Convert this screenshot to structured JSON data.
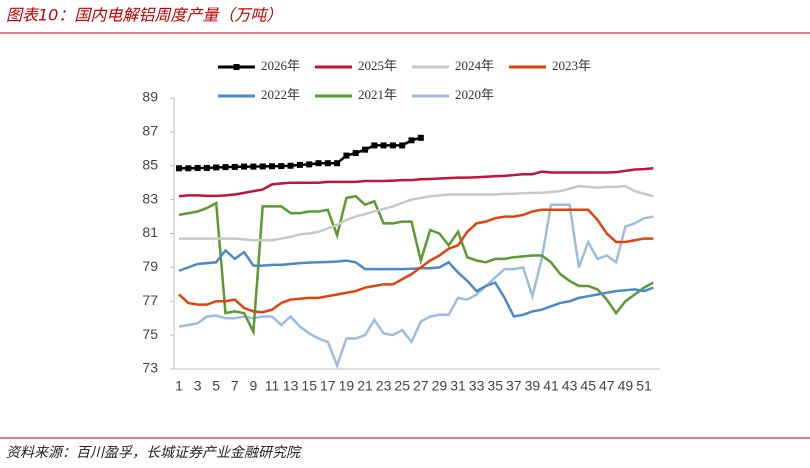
{
  "chart_data": {
    "type": "line",
    "title": "图表10：国内电解铝周度产量（万吨）",
    "source": "资料来源：百川盈孚，长城证券产业金融研究院",
    "categories": [
      "1",
      null,
      "3",
      null,
      "5",
      null,
      "7",
      null,
      "9",
      null,
      "11",
      null,
      "13",
      null,
      "15",
      null,
      "17",
      null,
      "19",
      null,
      "21",
      null,
      "23",
      null,
      "25",
      null,
      "27",
      null,
      "29",
      null,
      "31",
      null,
      "33",
      null,
      "35",
      null,
      "37",
      null,
      "39",
      null,
      "41",
      null,
      "43",
      null,
      "45",
      null,
      "47",
      null,
      "49",
      null,
      "51",
      null
    ],
    "ylim": [
      73,
      89
    ],
    "yticks": [
      73,
      75,
      77,
      79,
      81,
      83,
      85,
      87,
      89
    ],
    "series": [
      {
        "name": "2026年",
        "color": "#000000",
        "marker": "square",
        "values": [
          84.85,
          84.85,
          84.87,
          84.87,
          84.9,
          84.92,
          84.93,
          84.95,
          84.95,
          84.96,
          84.97,
          84.98,
          85.0,
          85.05,
          85.08,
          85.15,
          85.15,
          85.15,
          85.6,
          85.75,
          85.95,
          86.2,
          86.2,
          86.2,
          86.2,
          86.5,
          86.65,
          null,
          null,
          null,
          null,
          null,
          null,
          null,
          null,
          null,
          null,
          null,
          null,
          null,
          null,
          null,
          null,
          null,
          null,
          null,
          null,
          null,
          null,
          null,
          null,
          null
        ]
      },
      {
        "name": "2025年",
        "color": "#c0143c",
        "values": [
          83.2,
          83.25,
          83.25,
          83.22,
          83.22,
          83.25,
          83.3,
          83.4,
          83.5,
          83.6,
          83.9,
          83.95,
          84.0,
          84.0,
          84.0,
          84.0,
          84.05,
          84.05,
          84.05,
          84.05,
          84.1,
          84.1,
          84.1,
          84.12,
          84.15,
          84.15,
          84.2,
          84.22,
          84.25,
          84.27,
          84.3,
          84.3,
          84.32,
          84.35,
          84.38,
          84.4,
          84.45,
          84.5,
          84.5,
          84.65,
          84.6,
          84.6,
          84.6,
          84.6,
          84.6,
          84.6,
          84.6,
          84.62,
          84.7,
          84.78,
          84.8,
          84.85
        ]
      },
      {
        "name": "2024年",
        "color": "#c8c8c8",
        "values": [
          80.7,
          80.7,
          80.7,
          80.7,
          80.7,
          80.7,
          80.7,
          80.65,
          80.6,
          80.6,
          80.6,
          80.7,
          80.8,
          80.95,
          81.0,
          81.1,
          81.3,
          81.5,
          81.8,
          82.0,
          82.15,
          82.3,
          82.45,
          82.6,
          82.8,
          83.0,
          83.1,
          83.2,
          83.25,
          83.3,
          83.3,
          83.3,
          83.3,
          83.3,
          83.3,
          83.35,
          83.35,
          83.38,
          83.4,
          83.4,
          83.45,
          83.5,
          83.65,
          83.8,
          83.75,
          83.7,
          83.75,
          83.75,
          83.8,
          83.5,
          83.35,
          83.2
        ]
      },
      {
        "name": "2023年",
        "color": "#e0440e",
        "values": [
          77.4,
          76.9,
          76.8,
          76.8,
          77.0,
          77.0,
          77.1,
          76.6,
          76.4,
          76.35,
          76.5,
          76.9,
          77.1,
          77.15,
          77.2,
          77.2,
          77.3,
          77.4,
          77.5,
          77.6,
          77.8,
          77.9,
          78.0,
          78.0,
          78.3,
          78.6,
          79.0,
          79.4,
          79.7,
          80.1,
          80.3,
          81.1,
          81.6,
          81.7,
          81.9,
          82.0,
          82.0,
          82.1,
          82.3,
          82.4,
          82.4,
          82.4,
          82.4,
          82.4,
          82.4,
          81.8,
          81.0,
          80.5,
          80.5,
          80.6,
          80.7,
          80.7
        ]
      },
      {
        "name": "2022年",
        "color": "#4a8ac8",
        "values": [
          78.8,
          79.0,
          79.2,
          79.25,
          79.3,
          80.0,
          79.5,
          79.9,
          79.1,
          79.1,
          79.15,
          79.15,
          79.2,
          79.25,
          79.28,
          79.3,
          79.32,
          79.35,
          79.4,
          79.3,
          78.9,
          78.9,
          78.9,
          78.9,
          78.9,
          78.92,
          78.95,
          78.95,
          79.0,
          79.3,
          78.7,
          78.2,
          77.6,
          77.9,
          78.1,
          77.2,
          76.1,
          76.2,
          76.4,
          76.5,
          76.7,
          76.9,
          77.0,
          77.2,
          77.3,
          77.4,
          77.5,
          77.6,
          77.65,
          77.7,
          77.6,
          77.8
        ]
      },
      {
        "name": "2021年",
        "color": "#5a9a30",
        "values": [
          82.1,
          82.2,
          82.3,
          82.5,
          82.8,
          76.3,
          76.4,
          76.3,
          75.2,
          82.6,
          82.6,
          82.6,
          82.2,
          82.2,
          82.3,
          82.3,
          82.4,
          80.9,
          83.1,
          83.2,
          82.7,
          82.9,
          81.6,
          81.6,
          81.7,
          81.7,
          79.4,
          81.2,
          81.0,
          80.3,
          81.1,
          79.6,
          79.4,
          79.3,
          79.5,
          79.5,
          79.6,
          79.65,
          79.7,
          79.7,
          79.3,
          78.6,
          78.2,
          77.9,
          77.9,
          77.7,
          77.1,
          76.3,
          77.0,
          77.4,
          77.8,
          78.1
        ]
      },
      {
        "name": "2020年",
        "color": "#9dbde0",
        "values": [
          75.5,
          75.6,
          75.7,
          76.1,
          76.15,
          76.0,
          76.0,
          76.1,
          76.0,
          76.1,
          76.1,
          75.6,
          76.1,
          75.5,
          75.1,
          74.8,
          74.6,
          73.2,
          74.8,
          74.8,
          75.0,
          75.9,
          75.1,
          75.0,
          75.3,
          74.6,
          75.8,
          76.1,
          76.2,
          76.2,
          77.2,
          77.1,
          77.4,
          77.9,
          78.4,
          78.9,
          78.9,
          79.0,
          77.3,
          79.5,
          82.7,
          82.7,
          82.7,
          79.0,
          80.5,
          79.5,
          79.7,
          79.3,
          81.4,
          81.6,
          81.9,
          82.0
        ]
      }
    ]
  }
}
